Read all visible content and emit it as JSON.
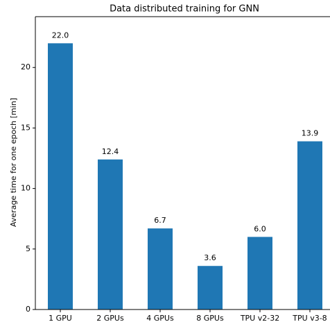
{
  "chart_data": {
    "type": "bar",
    "title": "Data distributed training for GNN",
    "y_label": "Average time for one epoch [min]",
    "categories": [
      "1 GPU",
      "2 GPUs",
      "4 GPUs",
      "8 GPUs",
      "TPU v2-32",
      "TPU v3-8"
    ],
    "values": [
      22.0,
      12.4,
      6.7,
      3.6,
      6.0,
      13.9
    ],
    "value_labels": [
      "22.0",
      "12.4",
      "6.7",
      "3.6",
      "6.0",
      "13.9"
    ],
    "color": "#1f77b4",
    "ylim": [
      0,
      24.2
    ],
    "yticks": [
      0,
      5,
      10,
      15,
      20
    ],
    "grid": false
  }
}
